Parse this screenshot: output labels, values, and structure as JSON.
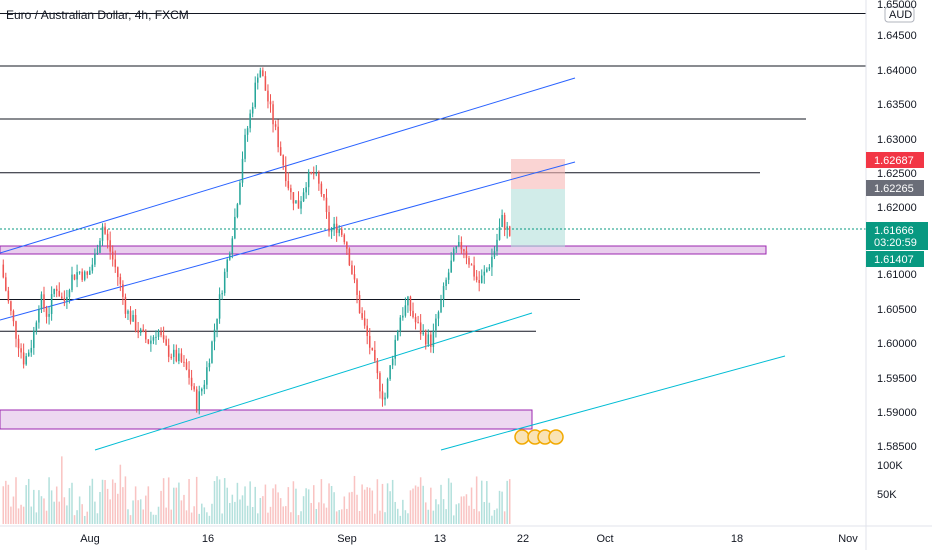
{
  "chart_data": {
    "type": "candlestick",
    "title": "Euro / Australian Dollar, 4h, FXCM",
    "currency": "AUD",
    "ylim": [
      1.5835,
      1.6515
    ],
    "y_ticks": [
      "1.65000",
      "1.64500",
      "1.64000",
      "1.63500",
      "1.63000",
      "1.62500",
      "1.62000",
      "1.61500",
      "1.61000",
      "1.60500",
      "1.60000",
      "1.59500",
      "1.59000",
      "1.58500"
    ],
    "x_labels": [
      "Aug",
      "16",
      "Sep",
      "13",
      "22",
      "Oct",
      "18",
      "Nov"
    ],
    "volume_ticks": [
      "100K",
      "50K"
    ],
    "price_labels": {
      "target": "1.62687",
      "stop": "1.62265",
      "current": "1.61666",
      "countdown": "03:20:59",
      "entry": "1.61407"
    },
    "price_path": [
      1.612,
      1.606,
      1.601,
      1.597,
      1.6,
      1.607,
      1.604,
      1.609,
      1.606,
      1.61,
      1.611,
      1.61,
      1.613,
      1.618,
      1.614,
      1.61,
      1.605,
      1.603,
      1.601,
      1.6,
      1.602,
      1.599,
      1.598,
      1.597,
      1.595,
      1.5905,
      1.594,
      1.6,
      1.607,
      1.613,
      1.62,
      1.63,
      1.636,
      1.643,
      1.638,
      1.633,
      1.628,
      1.623,
      1.621,
      1.625,
      1.626,
      1.623,
      1.617,
      1.618,
      1.616,
      1.61,
      1.604,
      1.6,
      1.595,
      1.591,
      1.598,
      1.604,
      1.606,
      1.603,
      1.601,
      1.6,
      1.605,
      1.61,
      1.614,
      1.615,
      1.612,
      1.609,
      1.611,
      1.614,
      1.619,
      1.6166
    ],
    "horizontal_levels": [
      1.6508,
      1.6427,
      1.6345,
      1.6262,
      1.6066,
      1.6017
    ],
    "zones": [
      {
        "type": "support",
        "low": 1.6135,
        "high": 1.6143
      },
      {
        "type": "support",
        "low": 1.5875,
        "high": 1.5905
      }
    ],
    "position": {
      "type": "long",
      "entry": 1.61407,
      "stop": 1.62265,
      "target": 1.62687
    },
    "colors": {
      "up": "#26a69a",
      "down": "#ef5350",
      "channel_dark": "#2962ff",
      "channel_light": "#00bcd4",
      "zone_fill": "#e1bee7",
      "zone_border": "#9c27b0",
      "stop_label": "#6a6d78",
      "target_label": "#f23645",
      "current_label": "#089981"
    }
  }
}
